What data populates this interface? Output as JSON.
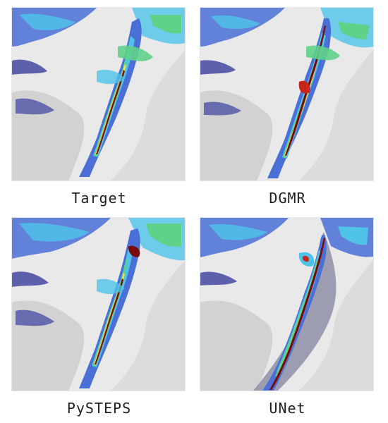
{
  "panels": [
    {
      "id": "target",
      "label": "Target"
    },
    {
      "id": "dgmr",
      "label": "DGMR"
    },
    {
      "id": "pysteps",
      "label": "PySTEPS"
    },
    {
      "id": "unet",
      "label": "UNet"
    }
  ],
  "colors": {
    "background_land": "#dcdcdc",
    "sea_light": "#ececec",
    "dark_blue": "#3a3f9c",
    "blue": "#4a6fd6",
    "cyan": "#4fc3e8",
    "green": "#5fd28a",
    "yellow": "#e9e34a",
    "red": "#c8261b",
    "dark_red": "#7a0a05",
    "unet_gray": "#8f8fa8"
  }
}
